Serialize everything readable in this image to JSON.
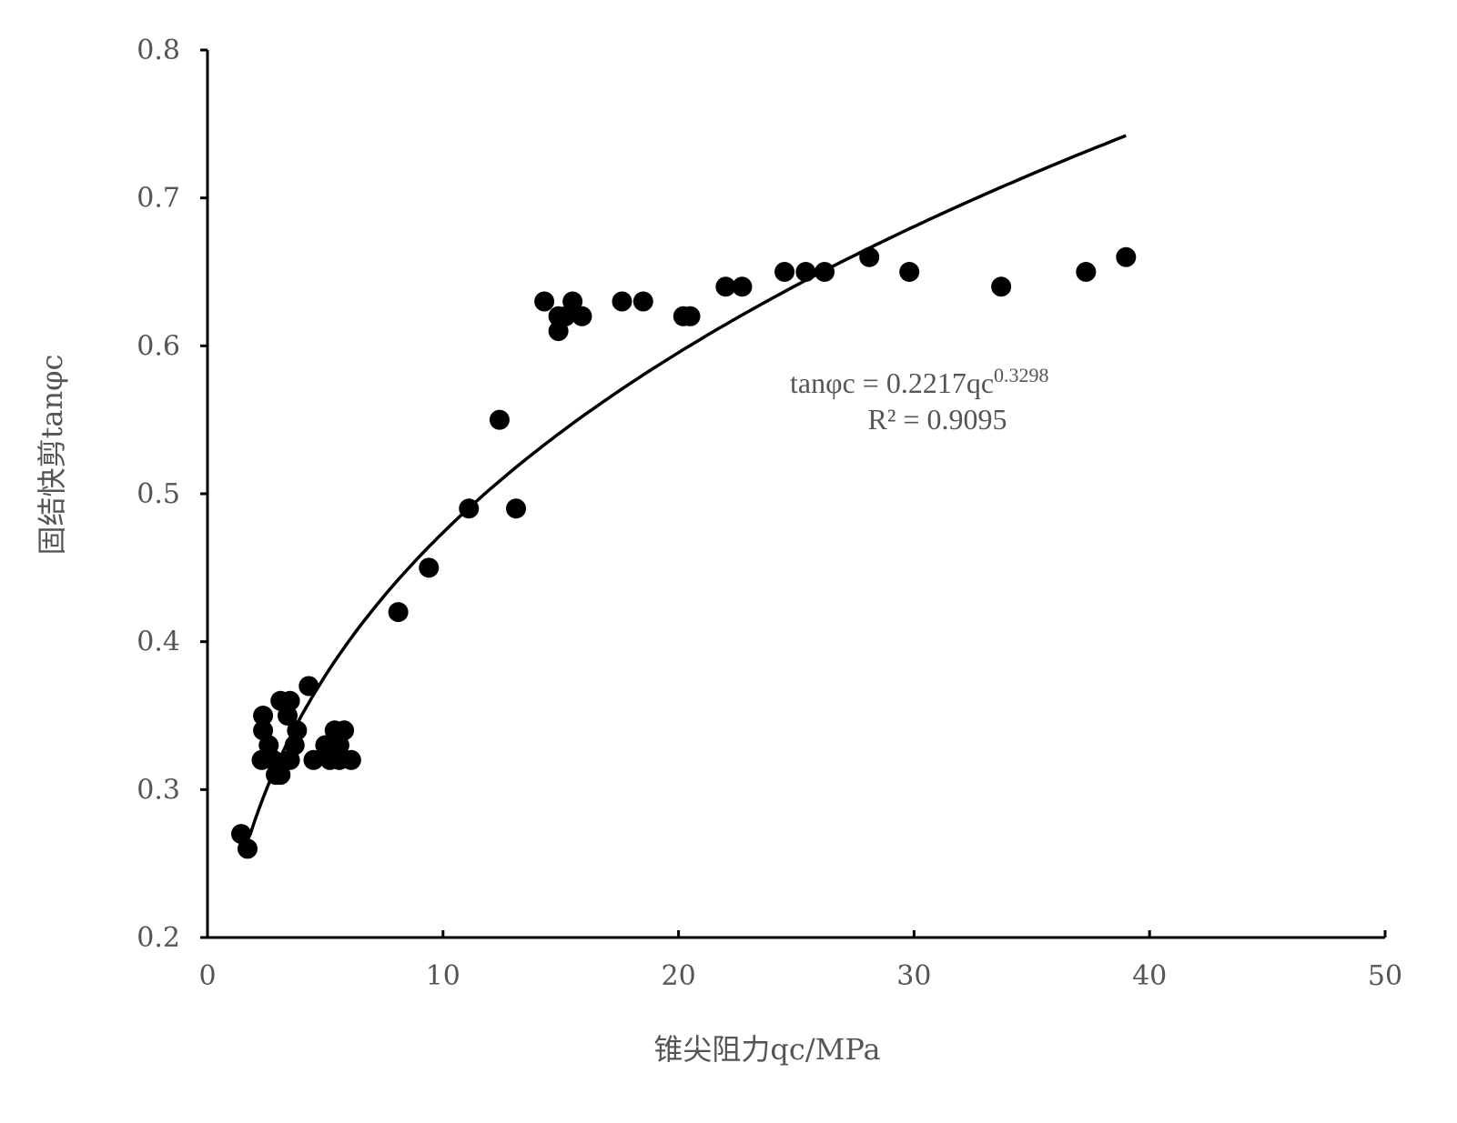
{
  "chart_data": {
    "type": "scatter",
    "xlabel": "锥尖阻力qc/MPa",
    "ylabel": "固结快剪tanφc",
    "xlim": [
      0,
      50
    ],
    "ylim": [
      0.2,
      0.8
    ],
    "xticks": [
      "0",
      "10",
      "20",
      "30",
      "40",
      "50"
    ],
    "yticks": [
      "0.2",
      "0.3",
      "0.4",
      "0.5",
      "0.6",
      "0.7",
      "0.8"
    ],
    "grid": false,
    "marker_color": "#000000",
    "points": [
      [
        1.43,
        0.27
      ],
      [
        1.7,
        0.26
      ],
      [
        2.36,
        0.35
      ],
      [
        2.36,
        0.34
      ],
      [
        2.3,
        0.32
      ],
      [
        2.6,
        0.33
      ],
      [
        2.8,
        0.32
      ],
      [
        2.9,
        0.31
      ],
      [
        3.1,
        0.31
      ],
      [
        3.1,
        0.36
      ],
      [
        3.5,
        0.36
      ],
      [
        3.4,
        0.35
      ],
      [
        3.5,
        0.32
      ],
      [
        3.8,
        0.34
      ],
      [
        3.7,
        0.33
      ],
      [
        4.3,
        0.37
      ],
      [
        4.5,
        0.32
      ],
      [
        5.0,
        0.33
      ],
      [
        5.2,
        0.32
      ],
      [
        5.4,
        0.34
      ],
      [
        5.6,
        0.33
      ],
      [
        5.8,
        0.34
      ],
      [
        5.6,
        0.32
      ],
      [
        6.1,
        0.32
      ],
      [
        8.1,
        0.42
      ],
      [
        9.4,
        0.45
      ],
      [
        11.1,
        0.49
      ],
      [
        12.4,
        0.55
      ],
      [
        13.1,
        0.49
      ],
      [
        14.3,
        0.63
      ],
      [
        14.9,
        0.62
      ],
      [
        14.9,
        0.61
      ],
      [
        15.2,
        0.62
      ],
      [
        15.5,
        0.63
      ],
      [
        15.9,
        0.62
      ],
      [
        17.6,
        0.63
      ],
      [
        18.5,
        0.63
      ],
      [
        20.2,
        0.62
      ],
      [
        20.5,
        0.62
      ],
      [
        22.0,
        0.64
      ],
      [
        22.7,
        0.64
      ],
      [
        24.5,
        0.65
      ],
      [
        25.4,
        0.65
      ],
      [
        26.2,
        0.65
      ],
      [
        28.1,
        0.66
      ],
      [
        29.8,
        0.65
      ],
      [
        33.7,
        0.64
      ],
      [
        37.3,
        0.65
      ],
      [
        39.0,
        0.66
      ]
    ],
    "trendline": {
      "type": "power",
      "a": 0.2217,
      "b": 0.3298,
      "x_range": [
        1.8,
        39.0
      ]
    },
    "annotation": {
      "equation_prefix": "tanφc = 0.2217qc",
      "equation_exponent": "0.3298",
      "r2": "R² = 0.9095"
    }
  }
}
